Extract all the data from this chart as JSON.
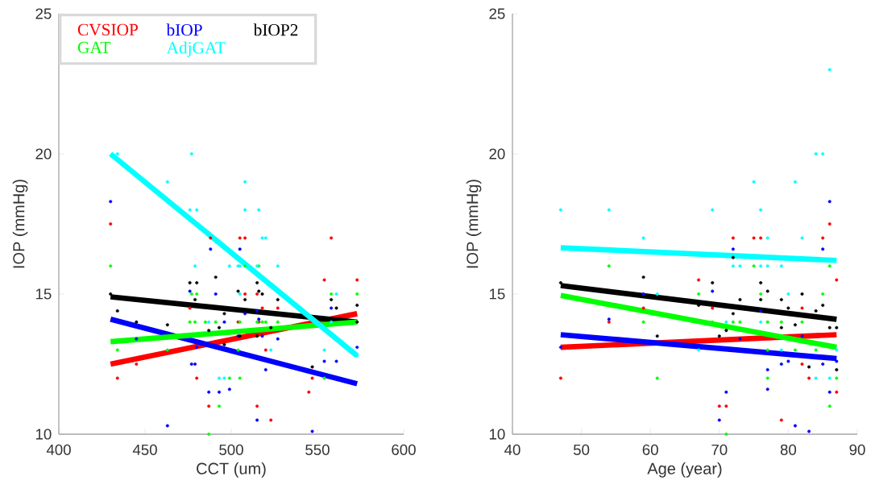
{
  "chart_data": [
    {
      "type": "scatter",
      "xlabel": "CCT (um)",
      "ylabel": "IOP (mmHg)",
      "xlim": [
        400,
        600
      ],
      "ylim": [
        10,
        25
      ],
      "xticks": [
        400,
        450,
        500,
        550,
        600
      ],
      "yticks": [
        10,
        15,
        20,
        25
      ],
      "legend": "top left",
      "marker": "circle",
      "series": [
        {
          "name": "CVSIOP",
          "color": "#ff0000",
          "x": [
            430,
            434,
            445,
            476,
            480,
            487,
            488,
            504,
            505,
            508,
            508,
            515,
            516,
            515,
            518,
            520,
            523,
            527,
            545,
            547,
            554,
            558,
            573
          ],
          "values": [
            17.5,
            12.0,
            12.5,
            14.5,
            12.0,
            11.0,
            17.0,
            14.0,
            17.0,
            17.0,
            15.0,
            15.0,
            14.0,
            11.0,
            14.5,
            13.0,
            10.5,
            14.5,
            11.5,
            12.0,
            15.5,
            17.0,
            15.5
          ]
        },
        {
          "name": "bIOP",
          "color": "#0000ff",
          "x": [
            430,
            445,
            463,
            476,
            477,
            479,
            480,
            487,
            488,
            491,
            493,
            496,
            499,
            504,
            505,
            508,
            515,
            516,
            518,
            520,
            515,
            527,
            547,
            554,
            558,
            561,
            573
          ],
          "values": [
            18.3,
            13.4,
            10.3,
            15.1,
            12.5,
            12.5,
            13.1,
            11.5,
            16.6,
            15.0,
            11.5,
            14.0,
            11.6,
            13.5,
            16.6,
            14.3,
            14.4,
            14.1,
            13.5,
            12.3,
            10.5,
            13.4,
            10.1,
            12.6,
            14.5,
            12.6,
            13.1
          ]
        },
        {
          "name": "bIOP2",
          "color": "#000000",
          "x": [
            430,
            434,
            445,
            463,
            476,
            480,
            479,
            487,
            491,
            493,
            496,
            496,
            504,
            505,
            508,
            515,
            516,
            518,
            515,
            523,
            527,
            547,
            558,
            561,
            573,
            573
          ],
          "values": [
            15.0,
            14.4,
            14.0,
            13.9,
            15.4,
            15.4,
            14.8,
            13.7,
            15.6,
            13.8,
            14.3,
            13.2,
            15.1,
            13.5,
            14.8,
            15.4,
            15.1,
            15.0,
            13.5,
            13.8,
            14.8,
            12.4,
            14.8,
            14.5,
            14.6,
            14.0
          ]
        },
        {
          "name": "GAT",
          "color": "#00ff00",
          "x": [
            430,
            434,
            463,
            476,
            477,
            479,
            480,
            485,
            487,
            491,
            493,
            499,
            504,
            505,
            505,
            508,
            515,
            516,
            518,
            520,
            527,
            554,
            558,
            573
          ],
          "values": [
            16.0,
            13.0,
            13.0,
            14.0,
            15.0,
            14.0,
            15.0,
            14.0,
            10.0,
            14.0,
            11.0,
            12.0,
            13.0,
            14.0,
            12.0,
            16.0,
            14.0,
            16.0,
            14.0,
            14.0,
            14.0,
            12.0,
            15.0,
            15.0
          ]
        },
        {
          "name": "AdjGAT",
          "color": "#00ffff",
          "x": [
            434,
            463,
            476,
            477,
            480,
            479,
            487,
            493,
            496,
            499,
            504,
            505,
            508,
            508,
            505,
            515,
            516,
            518,
            520,
            523,
            527,
            554,
            558,
            561,
            573
          ],
          "values": [
            20.0,
            19.0,
            18.0,
            20.0,
            18.0,
            16.0,
            14.0,
            12.0,
            12.0,
            16.0,
            16.0,
            16.0,
            19.0,
            18.0,
            15.0,
            16.0,
            18.0,
            17.0,
            17.0,
            13.0,
            16.0,
            13.0,
            14.0,
            15.0,
            12.8
          ]
        },
        {
          "color": "#ff0000",
          "type": "line",
          "marker": "none",
          "x": [
            430,
            573
          ],
          "values": [
            12.5,
            14.3
          ]
        },
        {
          "color": "#0000ff",
          "type": "line",
          "marker": "none",
          "x": [
            430,
            573
          ],
          "values": [
            14.1,
            11.8
          ]
        },
        {
          "color": "#000000",
          "type": "line",
          "marker": "none",
          "x": [
            430,
            573
          ],
          "values": [
            14.9,
            14.0
          ]
        },
        {
          "color": "#00ff00",
          "type": "line",
          "marker": "none",
          "x": [
            430,
            573
          ],
          "values": [
            13.3,
            14.0
          ]
        },
        {
          "color": "#00ffff",
          "type": "line",
          "marker": "none",
          "x": [
            430,
            573
          ],
          "values": [
            20.0,
            12.8
          ]
        }
      ]
    },
    {
      "type": "scatter",
      "xlabel": "Age (year)",
      "ylabel": "IOP (mmHg)",
      "xlim": [
        40,
        90
      ],
      "ylim": [
        10,
        25
      ],
      "xticks": [
        40,
        50,
        60,
        70,
        80,
        90
      ],
      "yticks": [
        10,
        15,
        20,
        25
      ],
      "marker": "circle",
      "series": [
        {
          "color": "#ff0000",
          "x": [
            47,
            54,
            59,
            67,
            69,
            70,
            71,
            72,
            75,
            76,
            79,
            82,
            82,
            83,
            85,
            86,
            87,
            87
          ],
          "values": [
            12,
            14,
            14.5,
            15.5,
            14.5,
            11,
            11,
            17,
            17,
            17,
            10.5,
            14.5,
            12.5,
            12,
            17,
            17.5,
            15.5,
            11.5
          ]
        },
        {
          "color": "#0000ff",
          "x": [
            47,
            54,
            59,
            69,
            70,
            71,
            72,
            73,
            76,
            77,
            77,
            79,
            80,
            81,
            82,
            83,
            85,
            85,
            86,
            86,
            87
          ],
          "values": [
            13.1,
            14.1,
            15.0,
            15.1,
            10.5,
            11.5,
            16.6,
            13.4,
            14.4,
            12.3,
            11.6,
            12.5,
            12.6,
            10.3,
            13.5,
            10.1,
            16.6,
            12.5,
            18.3,
            11.5,
            12.6
          ]
        },
        {
          "color": "#000000",
          "x": [
            47,
            59,
            61,
            67,
            69,
            70,
            71,
            72,
            72,
            73,
            76,
            76,
            77,
            79,
            79,
            80,
            81,
            82,
            83,
            84,
            85,
            86,
            87,
            87
          ],
          "values": [
            15.4,
            15.6,
            13.5,
            14.6,
            15.4,
            13.5,
            13.7,
            16.3,
            14.3,
            14.8,
            15.4,
            14.8,
            15.1,
            14.8,
            13.8,
            14.5,
            13.9,
            15.0,
            12.4,
            14.4,
            14.6,
            13.8,
            13.8,
            12.3
          ]
        },
        {
          "color": "#00ff00",
          "x": [
            54,
            59,
            61,
            67,
            69,
            71,
            72,
            73,
            75,
            76,
            77,
            77,
            77,
            79,
            81,
            82,
            84,
            85,
            86,
            86,
            87
          ],
          "values": [
            16,
            14,
            12,
            15,
            14,
            10,
            14,
            14,
            16,
            15,
            14,
            13,
            12,
            14,
            13,
            14,
            13,
            15,
            16,
            11,
            12
          ]
        },
        {
          "color": "#00ffff",
          "x": [
            47,
            54,
            59,
            61,
            67,
            69,
            71,
            72,
            73,
            75,
            76,
            76,
            76,
            77,
            77,
            79,
            79,
            80,
            81,
            82,
            84,
            84,
            85,
            86,
            86,
            87
          ],
          "values": [
            18,
            18,
            17,
            15,
            13,
            18,
            14,
            16,
            16,
            19,
            18,
            16,
            14,
            17,
            16,
            16,
            13,
            15,
            19,
            17,
            20,
            12,
            20,
            12,
            23,
            13
          ]
        },
        {
          "color": "#ff0000",
          "type": "line",
          "marker": "none",
          "x": [
            47,
            87
          ],
          "values": [
            13.1,
            13.55
          ]
        },
        {
          "color": "#0000ff",
          "type": "line",
          "marker": "none",
          "x": [
            47,
            87
          ],
          "values": [
            13.55,
            12.7
          ]
        },
        {
          "color": "#000000",
          "type": "line",
          "marker": "none",
          "x": [
            47,
            87
          ],
          "values": [
            15.3,
            14.1
          ]
        },
        {
          "color": "#00ff00",
          "type": "line",
          "marker": "none",
          "x": [
            47,
            87
          ],
          "values": [
            14.95,
            13.1
          ]
        },
        {
          "color": "#00ffff",
          "type": "line",
          "marker": "none",
          "x": [
            47,
            87
          ],
          "values": [
            16.65,
            16.2
          ]
        }
      ]
    }
  ]
}
